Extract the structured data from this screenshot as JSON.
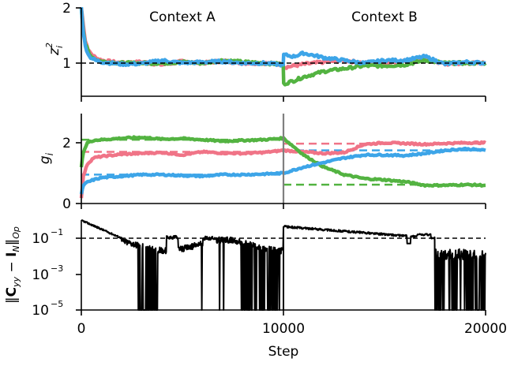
{
  "chart_data": [
    {
      "panel": "top",
      "type": "line",
      "ylabel": "z_i^2",
      "ylim": [
        0.35,
        2.0
      ],
      "yticks": [
        "1",
        "2"
      ],
      "x_range": [
        0,
        20000
      ],
      "annotations": [
        "Context A",
        "Context B"
      ],
      "reference_lines": [
        {
          "y": 1,
          "style": "dashed",
          "color": "#000000"
        }
      ],
      "x": [
        0,
        100,
        200,
        400,
        700,
        1000,
        2000,
        3000,
        4000,
        5000,
        6000,
        7000,
        8000,
        9000,
        9990,
        10010,
        10500,
        11000,
        12000,
        13000,
        14000,
        15000,
        16000,
        17000,
        18000,
        19000,
        20000
      ],
      "series": [
        {
          "name": "pink",
          "color": "#f07487",
          "values": [
            2.0,
            1.7,
            1.4,
            1.2,
            1.1,
            1.05,
            1.0,
            1.02,
            0.97,
            1.03,
            1.0,
            1.04,
            1.0,
            1.0,
            0.98,
            0.92,
            0.95,
            0.98,
            1.02,
            1.05,
            1.0,
            1.0,
            1.04,
            1.08,
            0.98,
            1.0,
            1.0
          ]
        },
        {
          "name": "green",
          "color": "#53b341",
          "values": [
            2.0,
            1.6,
            1.35,
            1.15,
            1.07,
            1.03,
            1.0,
            1.0,
            1.0,
            1.02,
            1.0,
            1.05,
            1.02,
            1.0,
            0.98,
            0.62,
            0.68,
            0.75,
            0.85,
            0.9,
            0.95,
            0.95,
            0.97,
            1.05,
            1.0,
            1.0,
            1.0
          ]
        },
        {
          "name": "blue",
          "color": "#3da5e8",
          "values": [
            2.0,
            1.55,
            1.3,
            1.12,
            1.05,
            1.02,
            0.98,
            0.99,
            1.05,
            1.0,
            1.02,
            1.03,
            1.0,
            1.0,
            0.97,
            1.15,
            1.12,
            1.18,
            1.1,
            1.05,
            1.0,
            1.05,
            1.05,
            1.12,
            0.98,
            1.02,
            1.0
          ]
        }
      ]
    },
    {
      "panel": "middle",
      "type": "line",
      "ylabel": "g_i",
      "ylim": [
        0,
        3.0
      ],
      "yticks": [
        "0",
        "2"
      ],
      "x_range": [
        0,
        20000
      ],
      "vertical_line": {
        "x": 10000,
        "color": "#808080"
      },
      "x": [
        0,
        100,
        300,
        600,
        1000,
        2000,
        3000,
        4000,
        5000,
        6000,
        7000,
        8000,
        9000,
        10000,
        11000,
        12000,
        13000,
        14000,
        15000,
        16000,
        17000,
        18000,
        19000,
        20000
      ],
      "series": [
        {
          "name": "pink",
          "color": "#f07487",
          "target_A": 1.7,
          "target_B": 1.97,
          "values": [
            0.2,
            0.9,
            1.3,
            1.5,
            1.55,
            1.62,
            1.65,
            1.68,
            1.6,
            1.7,
            1.66,
            1.65,
            1.68,
            1.75,
            1.7,
            1.65,
            1.68,
            1.95,
            2.0,
            1.98,
            1.95,
            1.98,
            2.0,
            2.0
          ]
        },
        {
          "name": "green",
          "color": "#53b341",
          "target_A": 2.1,
          "target_B": 0.62,
          "values": [
            1.2,
            1.7,
            2.0,
            2.08,
            2.1,
            2.15,
            2.18,
            2.12,
            2.14,
            2.1,
            2.05,
            2.08,
            2.1,
            2.15,
            1.6,
            1.2,
            0.95,
            0.82,
            0.78,
            0.72,
            0.6,
            0.6,
            0.62,
            0.6
          ]
        },
        {
          "name": "blue",
          "color": "#3da5e8",
          "target_A": 0.95,
          "target_B": 1.75,
          "values": [
            0.3,
            0.6,
            0.7,
            0.78,
            0.85,
            0.9,
            0.95,
            0.95,
            0.92,
            0.9,
            0.95,
            0.95,
            0.97,
            1.0,
            1.2,
            1.35,
            1.5,
            1.6,
            1.6,
            1.58,
            1.65,
            1.75,
            1.8,
            1.75
          ]
        }
      ]
    },
    {
      "panel": "bottom",
      "type": "line",
      "ylabel": "||C_yy - I_N||_Op",
      "yscale": "log",
      "ylim": [
        1e-05,
        1.5
      ],
      "yticks": [
        "10^-1",
        "10^-3",
        "10^-5"
      ],
      "xlabel": "Step",
      "xticks": [
        "0",
        "10000",
        "20000"
      ],
      "reference_lines": [
        {
          "y": 0.1,
          "style": "dashed",
          "color": "#000000"
        }
      ],
      "series": [
        {
          "name": "norm",
          "color": "#000000",
          "log10_values_description": "starts ~0 (1.0) decays to 10^-1 by ~2000, fluctuates 10^-2..10^-1 with drops to 10^-5 in Context A; jumps to ~0.5 at 10000, decays to ~0.1, then drops to 10^-5 spikes after ~17500"
        }
      ]
    }
  ],
  "labels": {
    "context_a": "Context A",
    "context_b": "Context B",
    "xlabel": "Step",
    "xtick_0": "0",
    "xtick_10000": "10000",
    "xtick_20000": "20000",
    "p1_ytick_1": "1",
    "p1_ytick_2": "2",
    "p2_ytick_0": "0",
    "p2_ytick_2": "2",
    "p3_ytick_m1": "10",
    "p3_ytick_m1_exp": "−1",
    "p3_ytick_m3": "10",
    "p3_ytick_m3_exp": "−3",
    "p3_ytick_m5": "10",
    "p3_ytick_m5_exp": "−5"
  }
}
